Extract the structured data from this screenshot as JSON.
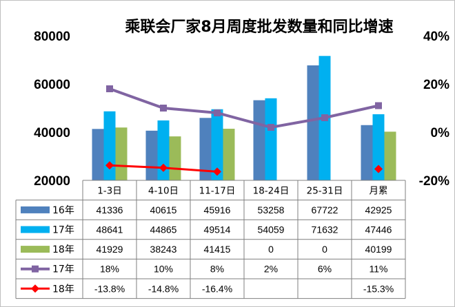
{
  "chart_data": {
    "type": "bar",
    "title": "乘联会厂家8月周度批发数量和同比增速",
    "categories": [
      "1-3日",
      "4-10日",
      "11-17日",
      "18-24日",
      "25-31日",
      "月累"
    ],
    "y_left": {
      "ticks": [
        "80000",
        "60000",
        "40000",
        "20000"
      ],
      "range": [
        20000,
        80000
      ]
    },
    "y_right": {
      "ticks": [
        "40%",
        "20%",
        "0%",
        "-20%"
      ],
      "range": [
        -20,
        40
      ]
    },
    "series": [
      {
        "name": "16年",
        "kind": "bar",
        "color": "#4f81bd",
        "values": [
          41336,
          40615,
          45916,
          53258,
          67722,
          42925
        ]
      },
      {
        "name": "17年",
        "kind": "bar",
        "color": "#00b0f0",
        "values": [
          48641,
          44865,
          49514,
          54059,
          71632,
          47446
        ]
      },
      {
        "name": "18年",
        "kind": "bar",
        "color": "#9bbb59",
        "values": [
          41929,
          38243,
          41415,
          0,
          0,
          40199
        ]
      },
      {
        "name": "17年",
        "kind": "line",
        "color": "#8064a2",
        "values": [
          18,
          10,
          8,
          2,
          6,
          11
        ]
      },
      {
        "name": "18年",
        "kind": "line",
        "color": "#ff0000",
        "values": [
          -13.8,
          -14.8,
          -16.4,
          null,
          null,
          -15.3
        ]
      }
    ],
    "table": {
      "rows": [
        [
          "41336",
          "40615",
          "45916",
          "53258",
          "67722",
          "42925"
        ],
        [
          "48641",
          "44865",
          "49514",
          "54059",
          "71632",
          "47446"
        ],
        [
          "41929",
          "38243",
          "41415",
          "0",
          "0",
          "40199"
        ],
        [
          "18%",
          "10%",
          "8%",
          "2%",
          "6%",
          "11%"
        ],
        [
          "-13.8%",
          "-14.8%",
          "-16.4%",
          "",
          "",
          "-15.3%"
        ]
      ]
    }
  }
}
